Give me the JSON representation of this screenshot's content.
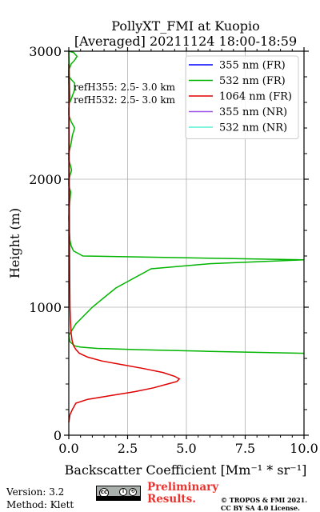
{
  "chart_data": {
    "type": "line",
    "title": "PollyXT_FMI at Kuopio",
    "subtitle": "[Averaged] 20211124 18:00-18:59",
    "xlabel": "Backscatter Coefficient [Mm⁻¹ * sr⁻¹]",
    "ylabel": "Height (m)",
    "xlim": [
      0,
      10
    ],
    "ylim": [
      0,
      3000
    ],
    "xticks": [
      0,
      2.5,
      5,
      7.5,
      10
    ],
    "xtick_labels": [
      "0.0",
      "2.5",
      "5.0",
      "7.5",
      "10.0"
    ],
    "yticks": [
      0,
      1000,
      2000,
      3000
    ],
    "ytick_labels": [
      "0",
      "1000",
      "2000",
      "3000"
    ],
    "grid": true,
    "legend_position": "top-right",
    "annotations": [
      "refH355:  2.5- 3.0 km",
      "refH532:  2.5- 3.0 km"
    ],
    "series": [
      {
        "name": "355 nm (FR)",
        "color": "#0000ff",
        "x": [],
        "y": []
      },
      {
        "name": "532 nm (FR)",
        "color": "#00b400",
        "x": [
          10.0,
          6.0,
          3.0,
          1.2,
          0.5,
          0.25,
          0.05,
          0.0,
          0.3,
          1.0,
          2.0,
          3.5,
          6.0,
          10.0,
          0.6,
          0.2,
          0.1,
          0.05,
          0.02,
          0.0,
          0.03,
          0.08,
          0.0,
          0.0,
          0.05,
          0.12,
          0.08,
          0.0,
          0.0,
          0.1,
          0.15,
          0.25,
          0.1,
          0.0,
          0.0,
          0.05,
          0.0,
          0.0,
          0.0,
          0.1,
          0.25,
          0.35,
          0.2,
          0.0,
          0.05,
          0.25,
          0.25,
          0.1,
          0.02,
          0.0
        ],
        "y": [
          640,
          655,
          668,
          678,
          688,
          698,
          730,
          780,
          870,
          1000,
          1150,
          1300,
          1340,
          1370,
          1400,
          1440,
          1480,
          1520,
          1600,
          1700,
          1800,
          1900,
          1950,
          1990,
          2030,
          2070,
          2100,
          2150,
          2200,
          2280,
          2340,
          2400,
          2450,
          2500,
          2550,
          2650,
          2750,
          2800,
          2850,
          2900,
          2930,
          2960,
          2990,
          3000,
          2600,
          2700,
          2750,
          2780,
          2800,
          2820
        ]
      },
      {
        "name": "1064 nm (FR)",
        "color": "#e00000",
        "x": [
          0.0,
          0.05,
          0.15,
          0.3,
          0.8,
          1.8,
          2.8,
          3.6,
          4.2,
          4.6,
          4.7,
          4.5,
          4.0,
          3.2,
          2.3,
          1.4,
          0.8,
          0.45,
          0.3,
          0.2,
          0.14,
          0.1,
          0.07,
          0.05,
          0.04,
          0.03,
          0.02,
          0.01,
          0.0
        ],
        "y": [
          100,
          160,
          200,
          250,
          280,
          310,
          340,
          370,
          400,
          420,
          440,
          460,
          490,
          520,
          550,
          580,
          610,
          640,
          670,
          700,
          740,
          800,
          900,
          1000,
          1200,
          1500,
          2000,
          2500,
          2900
        ]
      },
      {
        "name": "355 nm (NR)",
        "color": "#9d55e8",
        "x": [],
        "y": []
      },
      {
        "name": "532 nm (NR)",
        "color": "#55f0d2",
        "x": [],
        "y": []
      }
    ]
  },
  "footer": {
    "version": "Version: 3.2",
    "method": "Method: Klett",
    "preliminary": "Preliminary",
    "results": "Results.",
    "copyright": "© TROPOS & FMI 2021.",
    "license": "CC BY SA 4.0 License."
  }
}
